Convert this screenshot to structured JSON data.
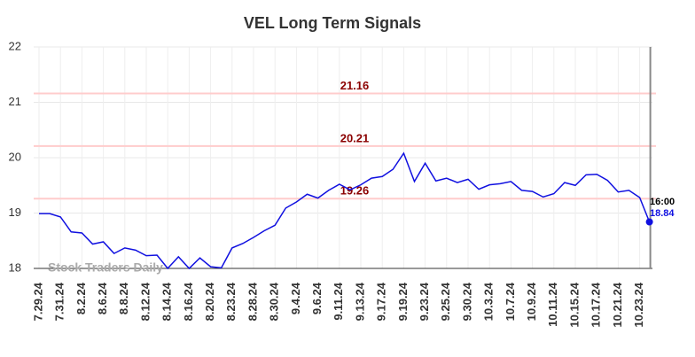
{
  "chart_data": {
    "type": "line",
    "title": "VEL Long Term Signals",
    "categories": [
      "7.29.24",
      null,
      "7.31.24",
      null,
      "8.2.24",
      null,
      "8.6.24",
      null,
      "8.8.24",
      null,
      "8.12.24",
      null,
      "8.14.24",
      null,
      "8.16.24",
      null,
      "8.20.24",
      null,
      "8.23.24",
      null,
      "8.28.24",
      null,
      "8.30.24",
      null,
      "9.4.24",
      null,
      "9.6.24",
      null,
      "9.11.24",
      null,
      "9.13.24",
      null,
      "9.17.24",
      null,
      "9.19.24",
      null,
      "9.23.24",
      null,
      "9.25.24",
      null,
      "9.30.24",
      null,
      "10.3.24",
      null,
      "10.7.24",
      null,
      "10.9.24",
      null,
      "10.11.24",
      null,
      "10.15.24",
      null,
      "10.17.24",
      null,
      "10.21.24",
      null,
      "10.23.24",
      null
    ],
    "series": [
      {
        "name": "VEL",
        "color": "#1010e0",
        "values": [
          18.99,
          18.99,
          18.93,
          18.66,
          18.64,
          18.44,
          18.48,
          18.27,
          18.37,
          18.33,
          18.23,
          18.24,
          18.0,
          18.21,
          18.0,
          18.19,
          18.03,
          18.01,
          18.37,
          18.45,
          18.56,
          18.68,
          18.78,
          19.09,
          19.2,
          19.34,
          19.27,
          19.41,
          19.52,
          19.42,
          19.51,
          19.63,
          19.66,
          19.79,
          20.08,
          19.57,
          19.9,
          19.58,
          19.63,
          19.55,
          19.61,
          19.43,
          19.51,
          19.53,
          19.57,
          19.41,
          19.39,
          19.29,
          19.35,
          19.55,
          19.5,
          19.69,
          19.7,
          19.59,
          19.38,
          19.41,
          19.28,
          18.84
        ]
      }
    ],
    "hlines": [
      21.16,
      20.21,
      19.26
    ],
    "hline_color": "#ffcccc",
    "hline_label_color": "#8b0000",
    "last_annotation": "16:00",
    "watermark": "Stock Traders Daily",
    "ylim": [
      18,
      22
    ],
    "yticks": [
      18,
      19,
      20,
      21,
      22
    ],
    "grid": true
  }
}
